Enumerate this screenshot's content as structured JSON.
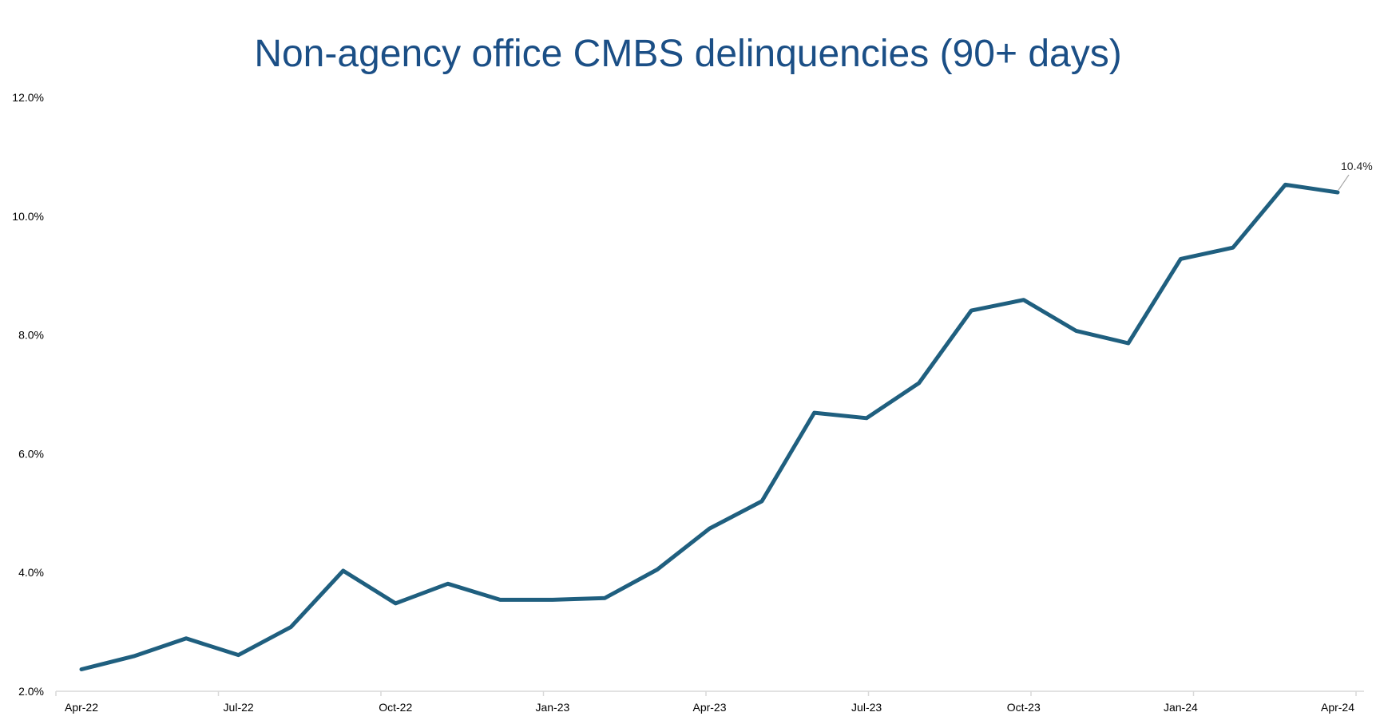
{
  "chart_data": {
    "type": "line",
    "title": "Non-agency office CMBS delinquencies (90+ days)",
    "xlabel": "",
    "ylabel": "",
    "ylim": [
      2.0,
      12.0
    ],
    "y_ticks": [
      "2.0%",
      "4.0%",
      "6.0%",
      "8.0%",
      "10.0%",
      "12.0%"
    ],
    "x_tick_labels": [
      "Apr-22",
      "Jul-22",
      "Oct-22",
      "Jan-23",
      "Apr-23",
      "Jul-23",
      "Oct-23",
      "Jan-24",
      "Apr-24"
    ],
    "grid": false,
    "legend": "none",
    "series": [
      {
        "color": "#1f5f7f",
        "x": [
          "Apr-22",
          "May-22",
          "Jun-22",
          "Jul-22",
          "Aug-22",
          "Sep-22",
          "Oct-22",
          "Nov-22",
          "Dec-22",
          "Jan-23",
          "Feb-23",
          "Mar-23",
          "Apr-23",
          "May-23",
          "Jun-23",
          "Jul-23",
          "Aug-23",
          "Sep-23",
          "Oct-23",
          "Nov-23",
          "Dec-23",
          "Jan-24",
          "Feb-24",
          "Mar-24",
          "Apr-24"
        ],
        "values": [
          2.37,
          2.59,
          2.89,
          2.61,
          3.08,
          4.03,
          3.48,
          3.81,
          3.54,
          3.54,
          3.57,
          4.05,
          4.74,
          5.2,
          6.69,
          6.6,
          7.19,
          8.41,
          8.59,
          8.07,
          7.86,
          9.28,
          9.47,
          10.53,
          10.4
        ]
      }
    ],
    "annotations": [
      {
        "text": "10.4%",
        "x": "Apr-24",
        "y": 10.4
      }
    ]
  }
}
